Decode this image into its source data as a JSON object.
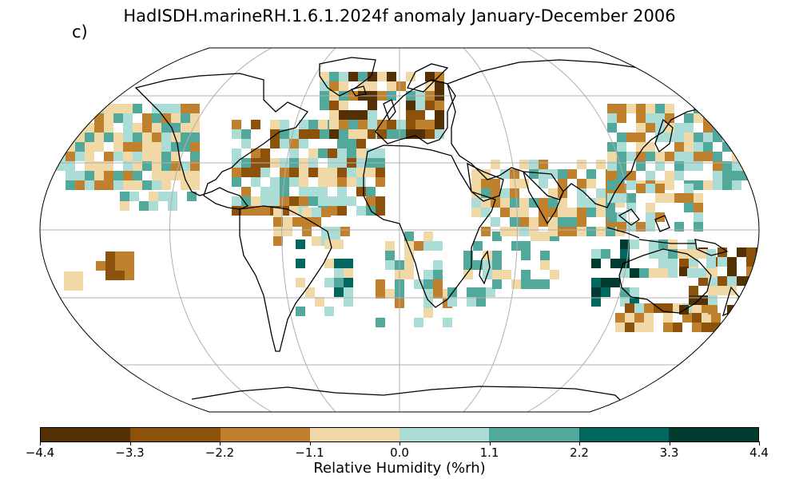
{
  "title": "HadISDH.marineRH.1.6.1.2024f anomaly January-December 2006",
  "panel_label": "c)",
  "projection": "Robinson",
  "colorbar": {
    "label": "Relative Humidity (%rh)",
    "ticks": [
      "−4.4",
      "−3.3",
      "−2.2",
      "−1.1",
      "0.0",
      "1.1",
      "2.2",
      "3.3",
      "4.4"
    ],
    "colors": [
      "#543005",
      "#8c510a",
      "#bf812d",
      "#f0d9a6",
      "#abdcd5",
      "#52a89b",
      "#01665e",
      "#003c30"
    ]
  },
  "legend": {
    "dry_color": "#bf812d",
    "moist_color": "#52a89b"
  }
}
